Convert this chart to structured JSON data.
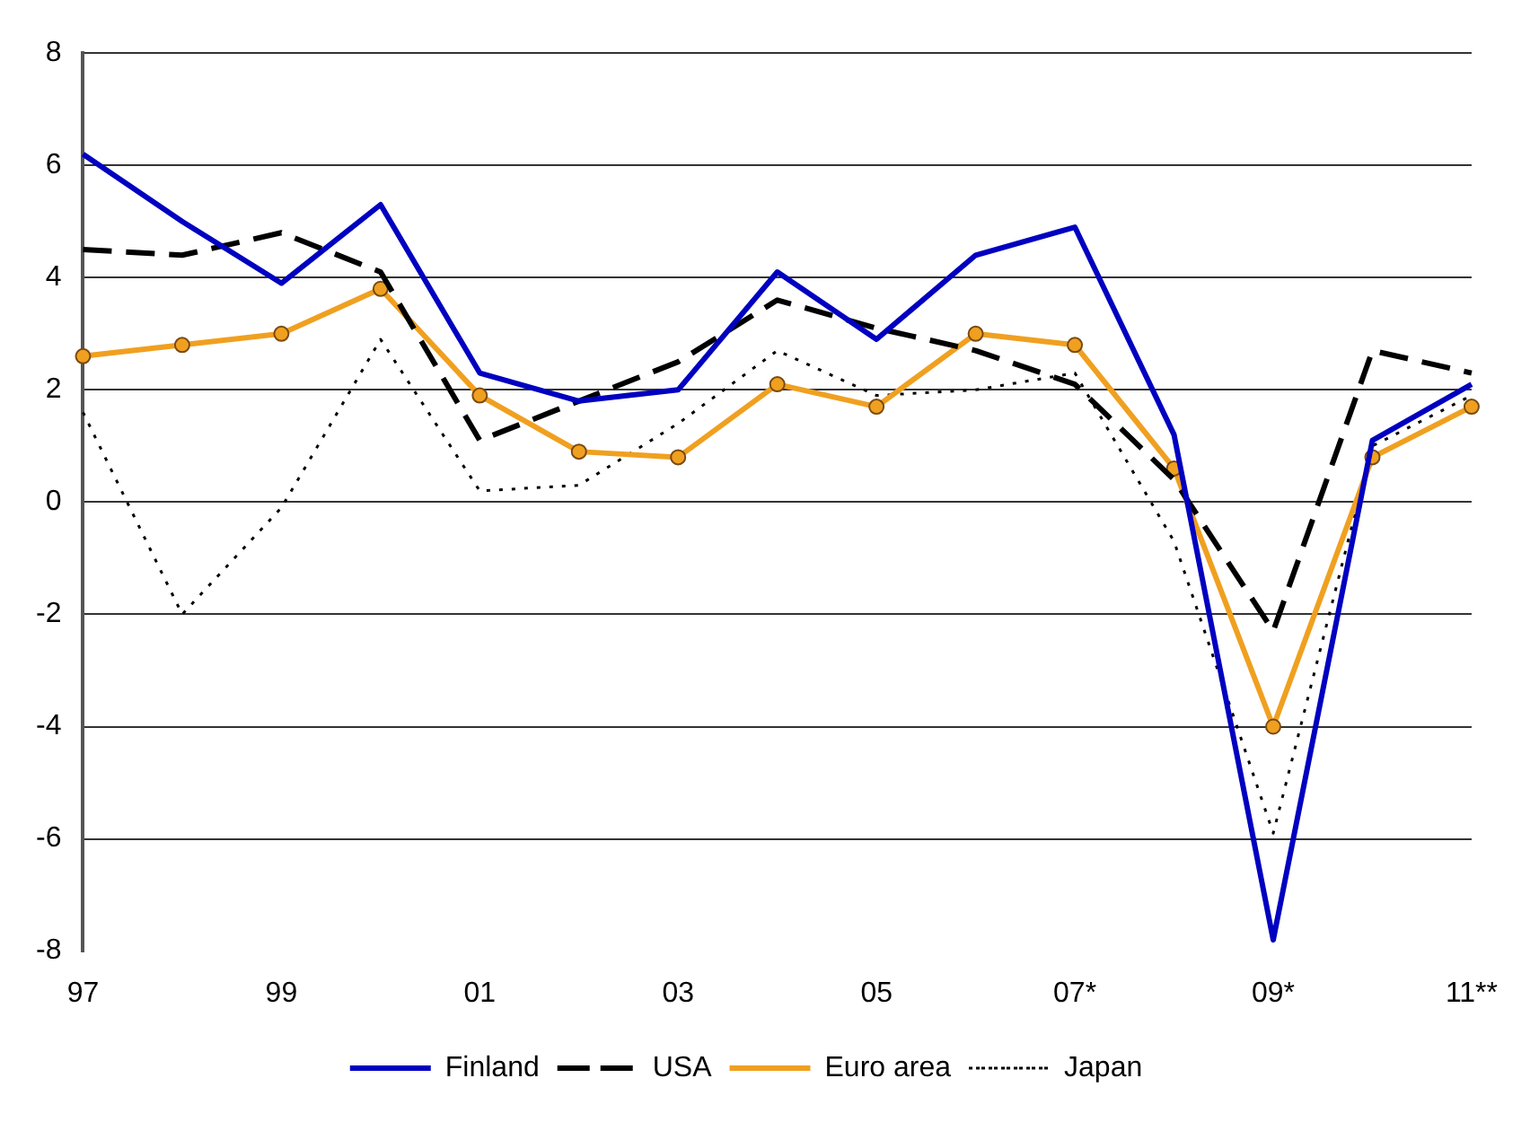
{
  "chart_data": {
    "type": "line",
    "categories": [
      "97",
      null,
      "99",
      null,
      "01",
      null,
      "03",
      null,
      "05",
      null,
      "07*",
      null,
      "09*",
      null,
      "11**"
    ],
    "series": [
      {
        "name": "Finland",
        "color": "#0000c0",
        "line_style": "solid",
        "marker": "none",
        "values": [
          6.2,
          5.0,
          3.9,
          5.3,
          2.3,
          1.8,
          2.0,
          4.1,
          2.9,
          4.4,
          4.9,
          1.2,
          -7.8,
          1.1,
          2.1
        ]
      },
      {
        "name": "USA",
        "color": "#000000",
        "line_style": "dashed",
        "marker": "none",
        "values": [
          4.5,
          4.4,
          4.8,
          4.1,
          1.1,
          1.8,
          2.5,
          3.6,
          3.1,
          2.7,
          2.1,
          0.4,
          -2.3,
          2.7,
          2.3
        ]
      },
      {
        "name": "Euro area",
        "color": "#f0a020",
        "line_style": "solid",
        "marker": "circle",
        "values": [
          2.6,
          2.8,
          3.0,
          3.8,
          1.9,
          0.9,
          0.8,
          2.1,
          1.7,
          3.0,
          2.8,
          0.6,
          -4.0,
          0.8,
          1.7
        ]
      },
      {
        "name": "Japan",
        "color": "#000000",
        "line_style": "dotted",
        "marker": "none",
        "values": [
          1.6,
          -2.0,
          -0.1,
          2.9,
          0.2,
          0.3,
          1.4,
          2.7,
          1.9,
          2.0,
          2.3,
          -0.7,
          -5.9,
          1.0,
          1.9
        ]
      }
    ],
    "ylim": [
      -8,
      8
    ],
    "yticks": [
      -8,
      -6,
      -4,
      -2,
      0,
      2,
      4,
      6,
      8
    ],
    "grid": "y",
    "legend": "bottom"
  }
}
